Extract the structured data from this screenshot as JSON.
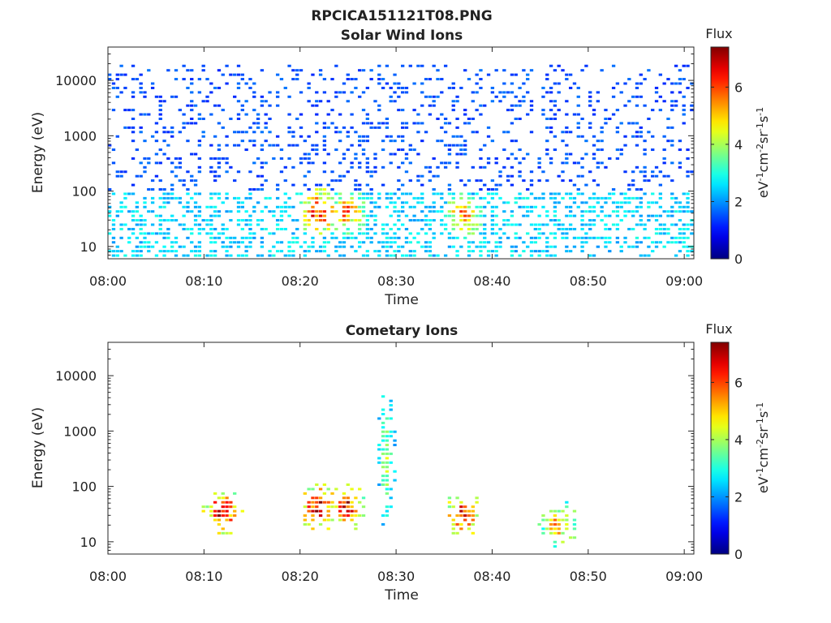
{
  "figure": {
    "title": "RPCICA151121T08.PNG"
  },
  "chart_data": [
    {
      "type": "heatmap",
      "title": "Solar Wind Ions",
      "xlabel": "Time",
      "ylabel": "Energy (eV)",
      "x_range": [
        "08:00",
        "09:01"
      ],
      "y_scale": "log",
      "ylim": [
        6,
        40000
      ],
      "xtick_labels": [
        "08:00",
        "08:10",
        "08:20",
        "08:30",
        "08:40",
        "08:50",
        "09:00"
      ],
      "ytick_labels": [
        "10",
        "100",
        "1000",
        "10000"
      ],
      "colorbar": {
        "title": "Flux",
        "label": "eV-1cm-2sr-1s-1",
        "range": [
          0,
          7.4
        ],
        "tick_labels": [
          "0",
          "2",
          "4",
          "6"
        ],
        "colormap": "jet"
      },
      "features": [
        {
          "feature": "sparse background counts",
          "energy_range": [
            100,
            20000
          ],
          "flux": 1.5
        },
        {
          "feature": "continuous band",
          "energy_range": [
            6,
            100
          ],
          "flux": 2.5
        },
        {
          "feature": "intensity peak",
          "time": "08:22",
          "energy": 40,
          "flux": 6.5
        },
        {
          "feature": "intensity peak",
          "time": "08:25",
          "energy": 40,
          "flux": 5.5
        },
        {
          "feature": "intensity peak",
          "time": "08:37",
          "energy": 35,
          "flux": 5.5
        }
      ]
    },
    {
      "type": "heatmap",
      "title": "Cometary Ions",
      "xlabel": "Time",
      "ylabel": "Energy (eV)",
      "x_range": [
        "08:00",
        "09:01"
      ],
      "y_scale": "log",
      "ylim": [
        6,
        40000
      ],
      "xtick_labels": [
        "08:00",
        "08:10",
        "08:20",
        "08:30",
        "08:40",
        "08:50",
        "09:00"
      ],
      "ytick_labels": [
        "10",
        "100",
        "1000",
        "10000"
      ],
      "colorbar": {
        "title": "Flux",
        "label": "eV-1cm-2sr-1s-1",
        "range": [
          0,
          7.4
        ],
        "tick_labels": [
          "0",
          "2",
          "4",
          "6"
        ],
        "colormap": "jet"
      },
      "features": [
        {
          "feature": "intensity peak",
          "time": "08:12",
          "energy": 35,
          "flux": 7
        },
        {
          "feature": "intensity peak",
          "time": "08:22",
          "energy": 40,
          "flux": 7
        },
        {
          "feature": "intensity peak",
          "time": "08:25",
          "energy": 40,
          "flux": 6.5
        },
        {
          "feature": "intensity peak",
          "time": "08:37",
          "energy": 30,
          "flux": 6.5
        },
        {
          "feature": "intensity peak",
          "time": "08:47",
          "energy": 20,
          "flux": 5.5
        },
        {
          "feature": "energy spike",
          "time": "08:29",
          "energy": 300,
          "flux": 4
        }
      ]
    }
  ]
}
